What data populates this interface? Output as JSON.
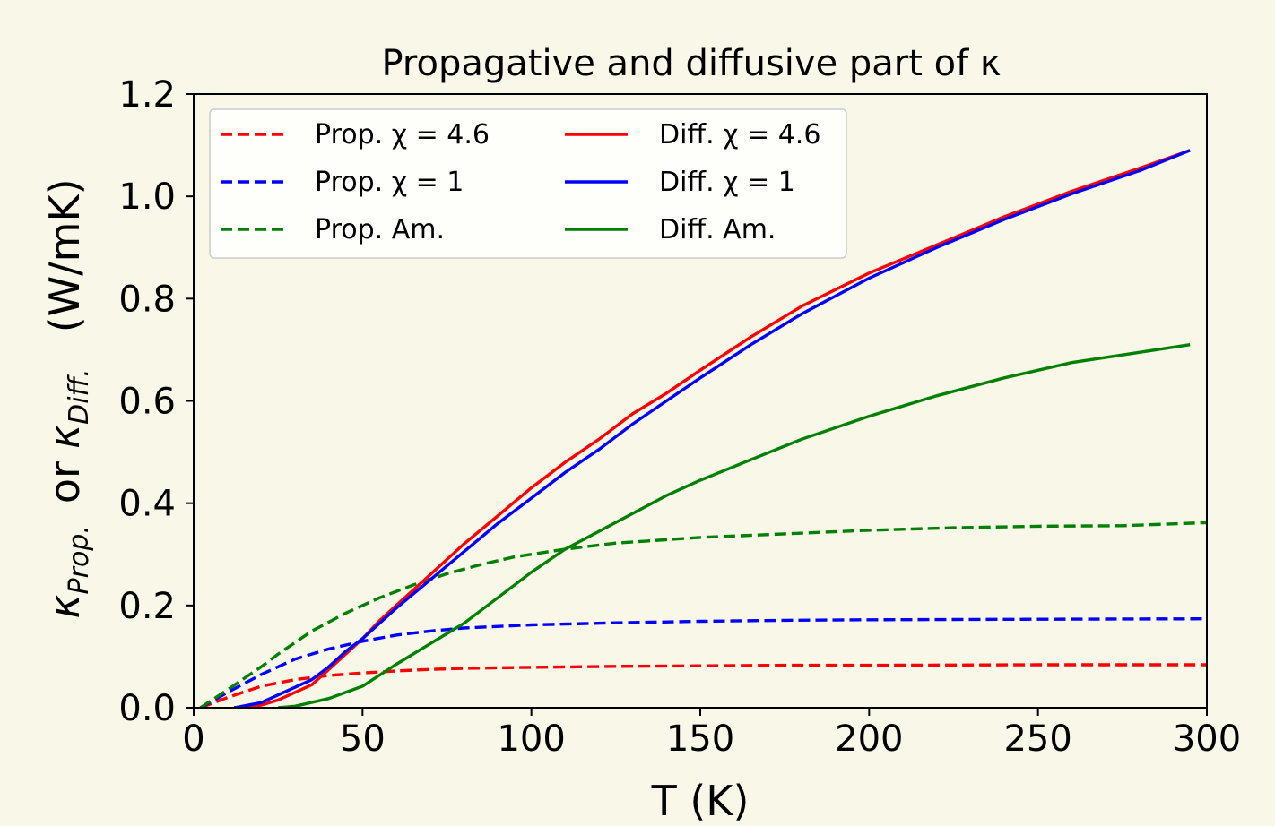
{
  "chart_data": {
    "type": "line",
    "title": "Propagative and diffusive part of κ",
    "xlabel": "T (K)",
    "ylabel": {
      "kappa": "κ",
      "prop_sub": "Prop.",
      "or": "or",
      "diff_sub": "Diff.",
      "unit": "(W/mK)"
    },
    "xlim": [
      0,
      300
    ],
    "ylim": [
      0,
      1.2
    ],
    "x_ticks": [
      0,
      50,
      100,
      150,
      200,
      250,
      300
    ],
    "x_tick_labels": [
      "0",
      "50",
      "100",
      "150",
      "200",
      "250",
      "300"
    ],
    "y_ticks": [
      0,
      0.2,
      0.4,
      0.6,
      0.8,
      1.0,
      1.2
    ],
    "y_tick_labels": [
      "0.0",
      "0.2",
      "0.4",
      "0.6",
      "0.8",
      "1.0",
      "1.2"
    ],
    "grid": false,
    "legend_placement": "top-left",
    "series": [
      {
        "name": "Prop. χ = 4.6",
        "key": "prop-chi-4-6",
        "color": "#ff0000",
        "dash": true,
        "x": [
          2,
          10,
          20,
          30,
          40,
          50,
          60,
          70,
          80,
          100,
          125,
          150,
          175,
          200,
          250,
          300
        ],
        "y": [
          0,
          0.02,
          0.042,
          0.055,
          0.063,
          0.068,
          0.072,
          0.075,
          0.077,
          0.079,
          0.081,
          0.082,
          0.083,
          0.083,
          0.084,
          0.084
        ]
      },
      {
        "name": "Prop. χ = 1",
        "key": "prop-chi-1",
        "color": "#0000ff",
        "dash": true,
        "x": [
          2,
          10,
          20,
          30,
          40,
          50,
          60,
          70,
          80,
          100,
          125,
          150,
          175,
          200,
          250,
          300
        ],
        "y": [
          0,
          0.03,
          0.065,
          0.095,
          0.115,
          0.13,
          0.142,
          0.15,
          0.156,
          0.162,
          0.166,
          0.169,
          0.171,
          0.172,
          0.173,
          0.174
        ]
      },
      {
        "name": "Prop. Am.",
        "key": "prop-am",
        "color": "#008000",
        "dash": true,
        "x": [
          2,
          10,
          20,
          25,
          35,
          45,
          55,
          65,
          75,
          85,
          95,
          110,
          125,
          150,
          175,
          200,
          225,
          250,
          275,
          300
        ],
        "y": [
          0,
          0.035,
          0.08,
          0.105,
          0.15,
          0.185,
          0.215,
          0.24,
          0.262,
          0.28,
          0.295,
          0.31,
          0.322,
          0.333,
          0.34,
          0.347,
          0.352,
          0.355,
          0.356,
          0.362
        ]
      },
      {
        "name": "Diff. χ = 4.6",
        "key": "diff-chi-4-6",
        "color": "#ff0000",
        "dash": false,
        "x": [
          12,
          20,
          25,
          35,
          40,
          45,
          50,
          55,
          60,
          70,
          80,
          90,
          100,
          110,
          120,
          130,
          140,
          150,
          165,
          180,
          200,
          220,
          240,
          260,
          280,
          295
        ],
        "y": [
          0,
          0.005,
          0.015,
          0.045,
          0.075,
          0.105,
          0.135,
          0.17,
          0.2,
          0.26,
          0.32,
          0.375,
          0.43,
          0.48,
          0.525,
          0.575,
          0.615,
          0.66,
          0.725,
          0.785,
          0.85,
          0.905,
          0.96,
          1.01,
          1.055,
          1.09
        ]
      },
      {
        "name": "Diff. χ = 1",
        "key": "diff-chi-1",
        "color": "#0000ff",
        "dash": false,
        "x": [
          12,
          20,
          25,
          35,
          40,
          45,
          50,
          55,
          60,
          70,
          80,
          90,
          100,
          110,
          120,
          130,
          140,
          150,
          165,
          180,
          200,
          220,
          240,
          260,
          280,
          295
        ],
        "y": [
          0,
          0.01,
          0.025,
          0.055,
          0.08,
          0.11,
          0.135,
          0.165,
          0.195,
          0.25,
          0.305,
          0.36,
          0.41,
          0.46,
          0.505,
          0.555,
          0.6,
          0.645,
          0.71,
          0.77,
          0.84,
          0.9,
          0.955,
          1.005,
          1.05,
          1.09
        ]
      },
      {
        "name": "Diff. Am.",
        "key": "diff-am",
        "color": "#008000",
        "dash": false,
        "x": [
          25,
          30,
          40,
          50,
          60,
          70,
          80,
          90,
          100,
          110,
          120,
          130,
          140,
          150,
          165,
          180,
          200,
          220,
          240,
          260,
          280,
          295
        ],
        "y": [
          0,
          0.003,
          0.018,
          0.042,
          0.085,
          0.125,
          0.165,
          0.215,
          0.265,
          0.31,
          0.345,
          0.38,
          0.415,
          0.445,
          0.485,
          0.525,
          0.57,
          0.61,
          0.645,
          0.675,
          0.695,
          0.71
        ]
      }
    ]
  }
}
